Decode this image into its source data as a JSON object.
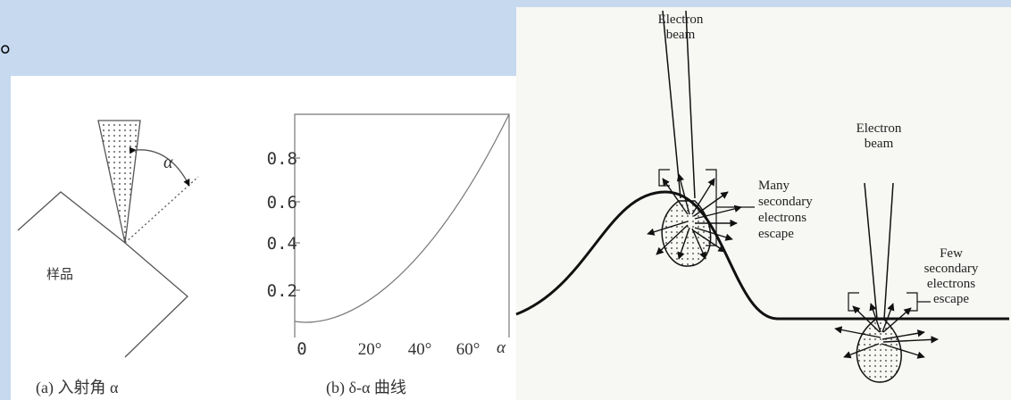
{
  "header": {
    "text": "。"
  },
  "figure_a": {
    "angle_label": "α",
    "sample_label": "样品",
    "caption": "(a)  入射角 α"
  },
  "figure_b": {
    "y_tick_labels": [
      "0.8",
      "0.6",
      "0.4",
      "0.2"
    ],
    "x_tick_labels": [
      "0",
      "20°",
      "40°",
      "60°",
      "α"
    ],
    "caption": "(b)  δ-α 曲线"
  },
  "figure_c": {
    "beam_1": [
      "Electron",
      "beam"
    ],
    "beam_2": [
      "Electron",
      "beam"
    ],
    "many_label": [
      "Many",
      "secondary",
      "electrons",
      "escape"
    ],
    "few_label": [
      "Few",
      "secondary",
      "electrons",
      "escape"
    ]
  }
}
